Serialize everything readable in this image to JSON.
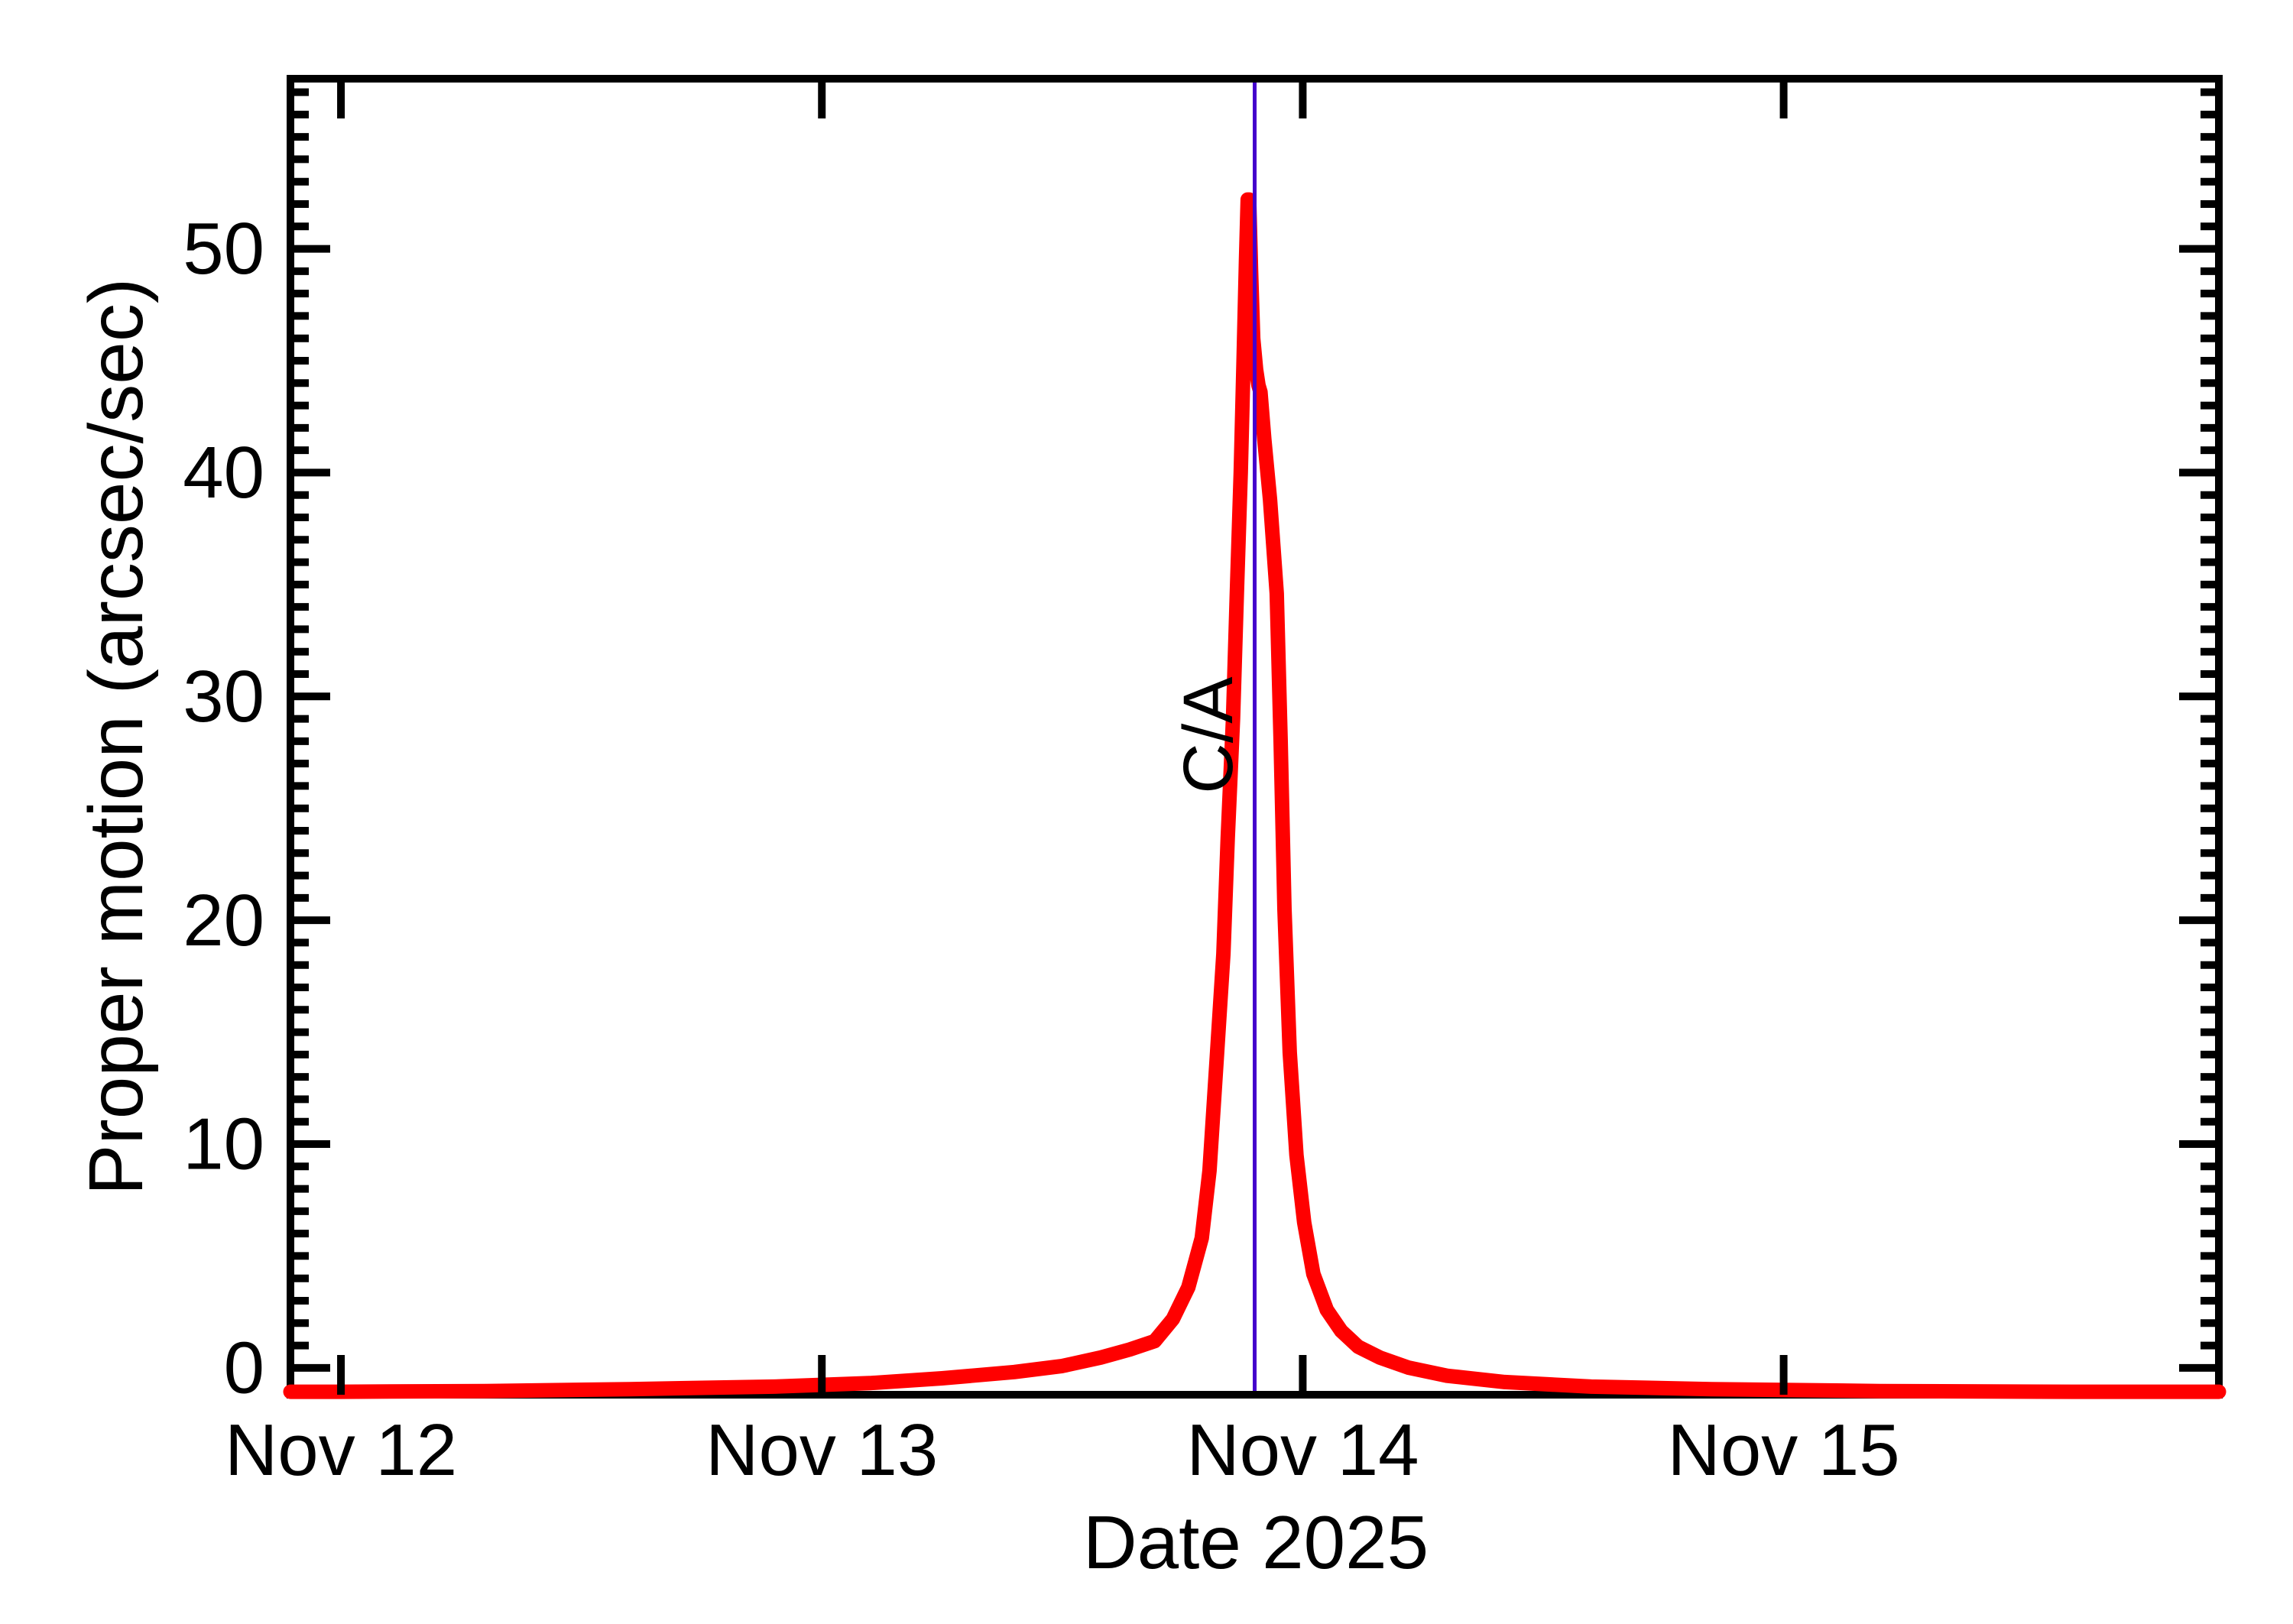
{
  "figure": {
    "ylabel": "Proper motion (arcsec/sec)",
    "xlabel": "Date 2025",
    "ca_label": "C/A"
  },
  "chart_data": {
    "type": "line",
    "title": "",
    "xlabel": "Date 2025",
    "ylabel": "Proper motion (arcsec/sec)",
    "grid": false,
    "legend": "none",
    "x_tick_labels": [
      "Nov 12",
      "Nov 13",
      "Nov 14",
      "Nov 15"
    ],
    "x_tick_days": [
      0,
      1,
      2,
      3
    ],
    "xlim_days": [
      -0.105,
      3.905
    ],
    "y_tick_labels": [
      "0",
      "10",
      "20",
      "30",
      "40",
      "50"
    ],
    "y_tick_values": [
      0,
      10,
      20,
      30,
      40,
      50
    ],
    "y_minor_tick_step": 1,
    "y_minor_tick_max": 57,
    "ylim": [
      -1.2,
      57.6
    ],
    "series": [
      {
        "name": "proper-motion-curve",
        "color": "#ff0000",
        "x_days": [
          -0.105,
          0.0,
          0.3,
          0.6,
          0.9,
          1.1,
          1.25,
          1.4,
          1.5,
          1.58,
          1.64,
          1.692,
          1.73,
          1.762,
          1.79,
          1.806,
          1.822,
          1.835,
          1.844,
          1.855,
          1.863,
          1.871,
          1.877,
          1.882,
          1.8855,
          1.8885,
          1.8925,
          1.897,
          1.903,
          1.908,
          1.912,
          1.92,
          1.932,
          1.946,
          1.954,
          1.962,
          1.973,
          1.987,
          2.003,
          2.022,
          2.05,
          2.08,
          2.115,
          2.16,
          2.22,
          2.3,
          2.42,
          2.6,
          2.85,
          3.2,
          3.6,
          3.905
        ],
        "values": [
          0.02,
          0.02,
          0.03,
          0.06,
          0.1,
          0.16,
          0.25,
          0.38,
          0.52,
          0.75,
          1.0,
          1.3,
          2.2,
          3.6,
          5.8,
          8.8,
          14.1,
          18.5,
          23.7,
          29.0,
          34.6,
          40.0,
          45.0,
          49.5,
          52.2,
          52.2,
          49.0,
          46.0,
          44.6,
          43.9,
          43.6,
          41.5,
          38.8,
          34.6,
          28.0,
          20.5,
          14.1,
          9.5,
          6.5,
          4.2,
          2.6,
          1.7,
          1.1,
          0.75,
          0.48,
          0.3,
          0.18,
          0.1,
          0.06,
          0.03,
          0.02,
          0.02
        ]
      }
    ],
    "annotations": [
      {
        "type": "vertical-line",
        "label": "C/A",
        "x_days": 1.9,
        "color": "#4400cc"
      }
    ],
    "peak": {
      "x_days": 1.886,
      "value": 52.2
    }
  },
  "style": {
    "background": "#ffffff",
    "axis_color": "#000000",
    "curve_color": "#ff0000",
    "ca_color": "#4400cc"
  }
}
